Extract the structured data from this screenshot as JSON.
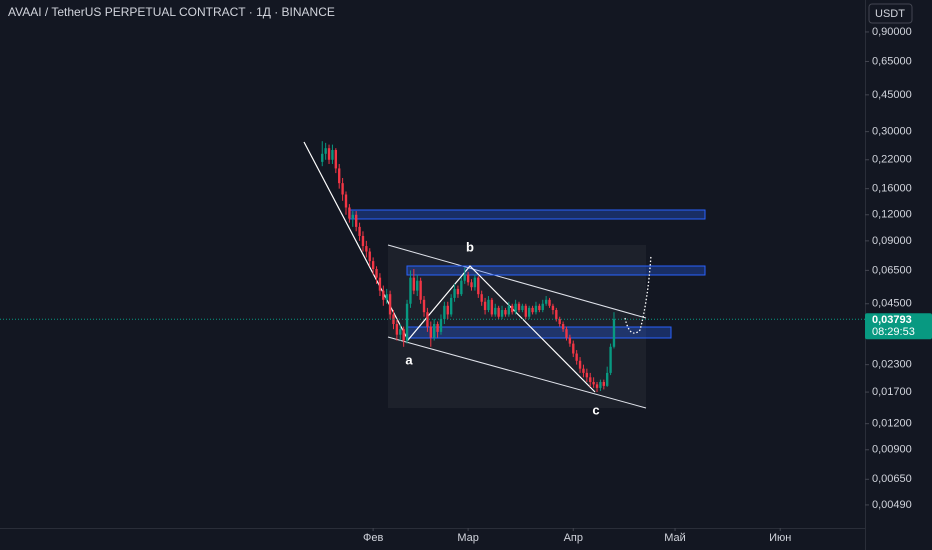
{
  "chart_data": {
    "type": "candlestick",
    "title": "AVAAI / TetherUS PERPETUAL CONTRACT · 1Д · BINANCE",
    "currency": "USDT",
    "log_scale": true,
    "up_color": "#089981",
    "down_color": "#f23645",
    "annotations": [
      "a",
      "b",
      "c"
    ],
    "countdown": "08:29:53",
    "last_price": {
      "value": 0.03793,
      "label": "0,03793"
    },
    "ylim": [
      0.0038,
      1.28
    ],
    "yticks": [
      {
        "value": 0.9,
        "label": "0,90000"
      },
      {
        "value": 0.65,
        "label": "0,65000"
      },
      {
        "value": 0.45,
        "label": "0,45000"
      },
      {
        "value": 0.3,
        "label": "0,30000"
      },
      {
        "value": 0.22,
        "label": "0,22000"
      },
      {
        "value": 0.16,
        "label": "0,16000"
      },
      {
        "value": 0.12,
        "label": "0,12000"
      },
      {
        "value": 0.09,
        "label": "0,09000"
      },
      {
        "value": 0.065,
        "label": "0,06500"
      },
      {
        "value": 0.045,
        "label": "0,04500"
      },
      {
        "value": 0.023,
        "label": "0,02300"
      },
      {
        "value": 0.017,
        "label": "0,01700"
      },
      {
        "value": 0.012,
        "label": "0,01200"
      },
      {
        "value": 0.009,
        "label": "0,00900"
      },
      {
        "value": 0.0065,
        "label": "0,00650"
      },
      {
        "value": 0.0049,
        "label": "0,00490"
      }
    ],
    "xlim": [
      -95,
      160
    ],
    "xticks": [
      {
        "value": 15,
        "label": "Фев"
      },
      {
        "value": 43,
        "label": "Мар"
      },
      {
        "value": 74,
        "label": "Апр"
      },
      {
        "value": 104,
        "label": "Май"
      },
      {
        "value": 135,
        "label": "Июн"
      }
    ],
    "categories": [
      null,
      null,
      null,
      null,
      null,
      null,
      null,
      null,
      null,
      null,
      null,
      null,
      null,
      null,
      null,
      null,
      null,
      null,
      null,
      null,
      null,
      null,
      null,
      null,
      null,
      null,
      null,
      null,
      null,
      null,
      null,
      null,
      null,
      null,
      null,
      null,
      null,
      null,
      null,
      null,
      null,
      null,
      null,
      null,
      null,
      null,
      null,
      null,
      null,
      null,
      null,
      null,
      null,
      null,
      null,
      null,
      null,
      null,
      null,
      null,
      null,
      null,
      null,
      null,
      null,
      null,
      null,
      null,
      null,
      null,
      null,
      null,
      null,
      null,
      null,
      null,
      null,
      null,
      null,
      null,
      null,
      null,
      null,
      null,
      null,
      null,
      null
    ],
    "open": [
      0.215,
      0.235,
      0.25,
      0.22,
      0.245,
      0.2,
      0.17,
      0.15,
      0.13,
      0.115,
      0.12,
      0.105,
      0.095,
      0.085,
      0.08,
      0.072,
      0.066,
      0.06,
      0.052,
      0.047,
      0.05,
      0.04,
      0.036,
      0.032,
      0.034,
      0.03,
      0.045,
      0.06,
      0.052,
      0.058,
      0.047,
      0.041,
      0.035,
      0.031,
      0.036,
      0.033,
      0.038,
      0.044,
      0.04,
      0.048,
      0.053,
      0.05,
      0.058,
      0.062,
      0.057,
      0.054,
      0.06,
      0.05,
      0.046,
      0.042,
      0.047,
      0.04,
      0.043,
      0.039,
      0.042,
      0.04,
      0.044,
      0.041,
      0.045,
      0.042,
      0.044,
      0.039,
      0.043,
      0.041,
      0.044,
      0.042,
      0.045,
      0.047,
      0.044,
      0.042,
      0.038,
      0.036,
      0.034,
      0.031,
      0.029,
      0.026,
      0.024,
      0.022,
      0.021,
      0.02,
      0.019,
      0.0185,
      0.0178,
      0.019,
      0.0182,
      0.021,
      0.028
    ],
    "high": [
      0.27,
      0.265,
      0.26,
      0.26,
      0.25,
      0.21,
      0.18,
      0.155,
      0.135,
      0.125,
      0.125,
      0.11,
      0.1,
      0.09,
      0.083,
      0.075,
      0.068,
      0.063,
      0.055,
      0.053,
      0.052,
      0.042,
      0.038,
      0.036,
      0.035,
      0.047,
      0.065,
      0.066,
      0.062,
      0.06,
      0.049,
      0.043,
      0.037,
      0.038,
      0.037,
      0.04,
      0.046,
      0.046,
      0.05,
      0.056,
      0.055,
      0.06,
      0.067,
      0.064,
      0.059,
      0.062,
      0.061,
      0.052,
      0.048,
      0.049,
      0.048,
      0.045,
      0.044,
      0.044,
      0.043,
      0.046,
      0.045,
      0.047,
      0.046,
      0.045,
      0.045,
      0.044,
      0.044,
      0.046,
      0.045,
      0.047,
      0.049,
      0.048,
      0.045,
      0.043,
      0.039,
      0.037,
      0.035,
      0.032,
      0.03,
      0.027,
      0.025,
      0.023,
      0.022,
      0.021,
      0.02,
      0.019,
      0.0195,
      0.0195,
      0.0225,
      0.029,
      0.041
    ],
    "low": [
      0.205,
      0.22,
      0.21,
      0.21,
      0.19,
      0.16,
      0.14,
      0.12,
      0.11,
      0.105,
      0.1,
      0.09,
      0.08,
      0.075,
      0.068,
      0.062,
      0.056,
      0.049,
      0.044,
      0.045,
      0.038,
      0.034,
      0.03,
      0.03,
      0.028,
      0.029,
      0.043,
      0.05,
      0.049,
      0.045,
      0.039,
      0.033,
      0.028,
      0.03,
      0.031,
      0.032,
      0.036,
      0.038,
      0.039,
      0.046,
      0.048,
      0.049,
      0.056,
      0.055,
      0.052,
      0.052,
      0.048,
      0.044,
      0.04,
      0.041,
      0.039,
      0.039,
      0.038,
      0.038,
      0.039,
      0.039,
      0.04,
      0.04,
      0.041,
      0.041,
      0.038,
      0.038,
      0.04,
      0.04,
      0.041,
      0.041,
      0.044,
      0.043,
      0.04,
      0.037,
      0.035,
      0.033,
      0.03,
      0.028,
      0.025,
      0.023,
      0.021,
      0.02,
      0.019,
      0.018,
      0.0178,
      0.017,
      0.0172,
      0.0175,
      0.018,
      0.0205,
      0.0275
    ],
    "close": [
      0.235,
      0.25,
      0.22,
      0.245,
      0.2,
      0.17,
      0.15,
      0.13,
      0.115,
      0.12,
      0.105,
      0.095,
      0.085,
      0.08,
      0.072,
      0.066,
      0.06,
      0.052,
      0.047,
      0.05,
      0.04,
      0.036,
      0.032,
      0.034,
      0.03,
      0.045,
      0.06,
      0.052,
      0.058,
      0.047,
      0.041,
      0.035,
      0.031,
      0.036,
      0.033,
      0.038,
      0.044,
      0.04,
      0.048,
      0.053,
      0.05,
      0.058,
      0.062,
      0.057,
      0.054,
      0.06,
      0.05,
      0.046,
      0.042,
      0.047,
      0.04,
      0.043,
      0.039,
      0.042,
      0.04,
      0.044,
      0.041,
      0.045,
      0.042,
      0.044,
      0.039,
      0.043,
      0.041,
      0.044,
      0.042,
      0.045,
      0.047,
      0.044,
      0.042,
      0.038,
      0.036,
      0.034,
      0.031,
      0.029,
      0.026,
      0.024,
      0.022,
      0.021,
      0.02,
      0.019,
      0.0185,
      0.0178,
      0.019,
      0.0182,
      0.021,
      0.028,
      0.03793
    ]
  }
}
